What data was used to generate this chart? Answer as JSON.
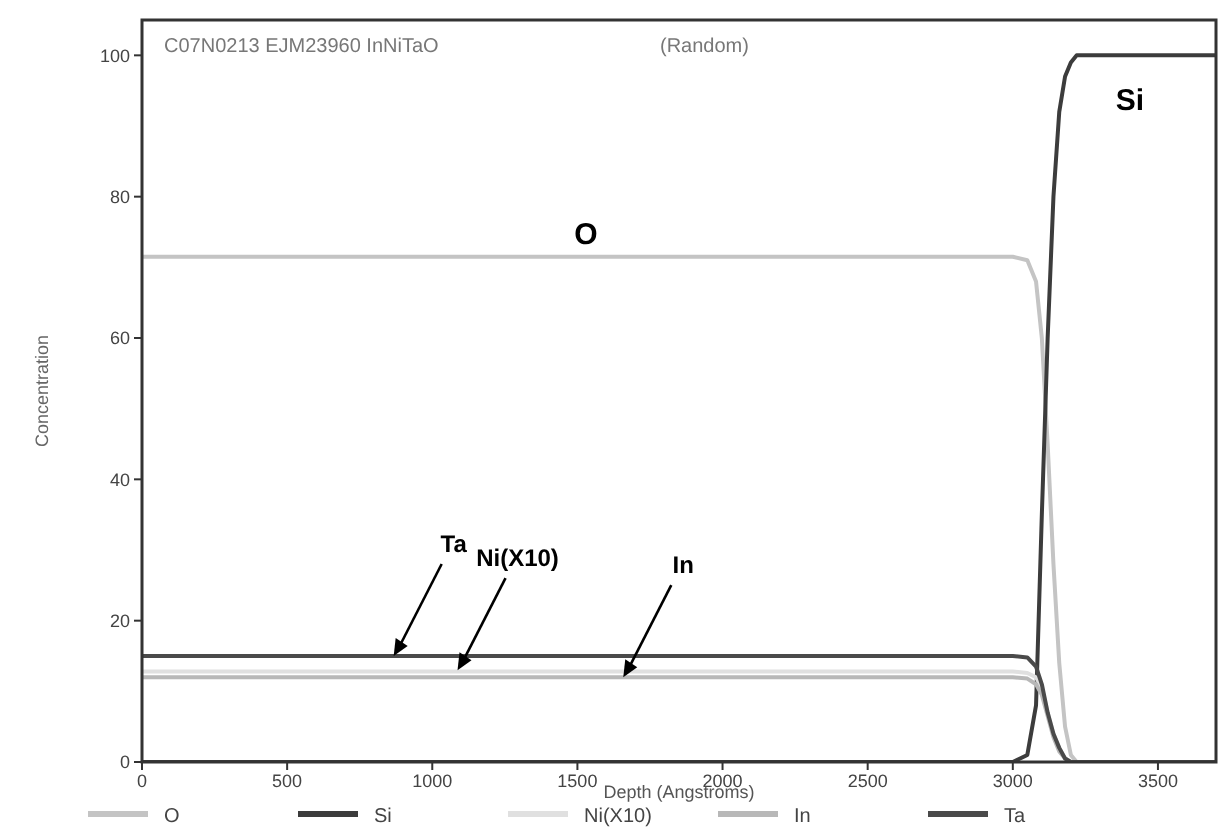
{
  "chart_data": {
    "type": "line",
    "title": "C07N0213 EJM23960 InNiTaO",
    "subtitle": "(Random)",
    "xlabel": "Depth (Angstroms)",
    "ylabel": "Concentration",
    "x": [
      0,
      500,
      1000,
      1500,
      2000,
      2500,
      3000,
      3050,
      3080,
      3100,
      3120,
      3140,
      3160,
      3180,
      3200,
      3220,
      3250,
      3700
    ],
    "series": [
      {
        "name": "O",
        "color": "#c4c4c4",
        "values": [
          71.5,
          71.5,
          71.5,
          71.5,
          71.5,
          71.5,
          71.5,
          71,
          68,
          60,
          45,
          28,
          14,
          5,
          1,
          0,
          0,
          0
        ]
      },
      {
        "name": "Si",
        "color": "#3c3c3c",
        "values": [
          0,
          0,
          0,
          0,
          0,
          0,
          0,
          1,
          8,
          35,
          60,
          80,
          92,
          97,
          99,
          100,
          100,
          100
        ]
      },
      {
        "name": "Ni(X10)",
        "color": "#e0e0e0",
        "values": [
          12.8,
          12.8,
          12.8,
          12.8,
          12.8,
          12.8,
          12.8,
          12.6,
          12,
          10.5,
          7,
          4,
          2,
          0.5,
          0,
          0,
          0,
          0
        ]
      },
      {
        "name": "In",
        "color": "#b8b8b8",
        "values": [
          12,
          12,
          12,
          12,
          12,
          12,
          12,
          11.8,
          11,
          9.5,
          6.5,
          3.5,
          1.5,
          0.5,
          0,
          0,
          0,
          0
        ]
      },
      {
        "name": "Ta",
        "color": "#4a4a4a",
        "values": [
          15,
          15,
          15,
          15,
          15,
          15,
          15,
          14.8,
          13.5,
          11,
          7,
          4,
          2,
          0.5,
          0,
          0,
          0,
          0
        ]
      }
    ],
    "xlim": [
      0,
      3700
    ],
    "xticks": [
      0,
      500,
      1000,
      1500,
      2000,
      2500,
      3000,
      3500
    ],
    "ylim": [
      0,
      105
    ],
    "yticks": [
      0,
      20,
      40,
      60,
      80,
      100
    ],
    "legend": "bottom",
    "annotations": [
      "O",
      "Si",
      {
        "text": "Ta",
        "x": 867,
        "y": 15
      },
      {
        "text": "Ni(X10)",
        "x": 1087,
        "y": 13
      },
      {
        "text": "In",
        "x": 1658,
        "y": 12
      }
    ]
  }
}
